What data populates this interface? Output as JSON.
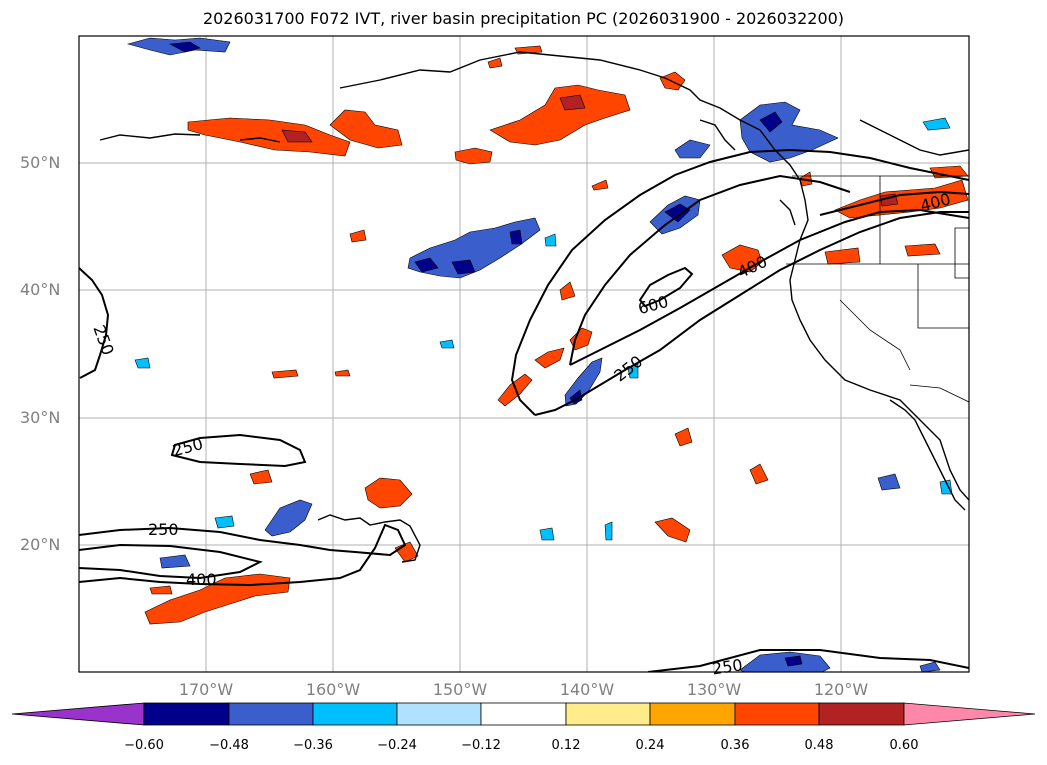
{
  "title": "2026031700 F072 IVT, river basin precipitation PC (2026031900 - 2026032200)",
  "lat_ticks": [
    "50°N",
    "40°N",
    "30°N",
    "20°N"
  ],
  "lon_ticks": [
    "170°W",
    "160°W",
    "150°W",
    "140°W",
    "130°W",
    "120°W"
  ],
  "contour_labels": {
    "c250_west": "250",
    "c250_mid": "250",
    "c250_low": "250",
    "c400_low": "400",
    "c600": "600",
    "c250_ar": "250",
    "c400_ar": "400",
    "c400_east": "400",
    "c250_bottom": "250"
  },
  "colorbar": {
    "labels": [
      "−0.60",
      "−0.48",
      "−0.36",
      "−0.24",
      "−0.12",
      "0.12",
      "0.24",
      "0.36",
      "0.48",
      "0.60"
    ],
    "colors": [
      "#9933cc",
      "#00008b",
      "#3a5fcd",
      "#00bfff",
      "#b0e2ff",
      "#ffffff",
      "#ffec8b",
      "#ffa500",
      "#ff4500",
      "#b22222",
      "#ff88aa"
    ]
  }
}
